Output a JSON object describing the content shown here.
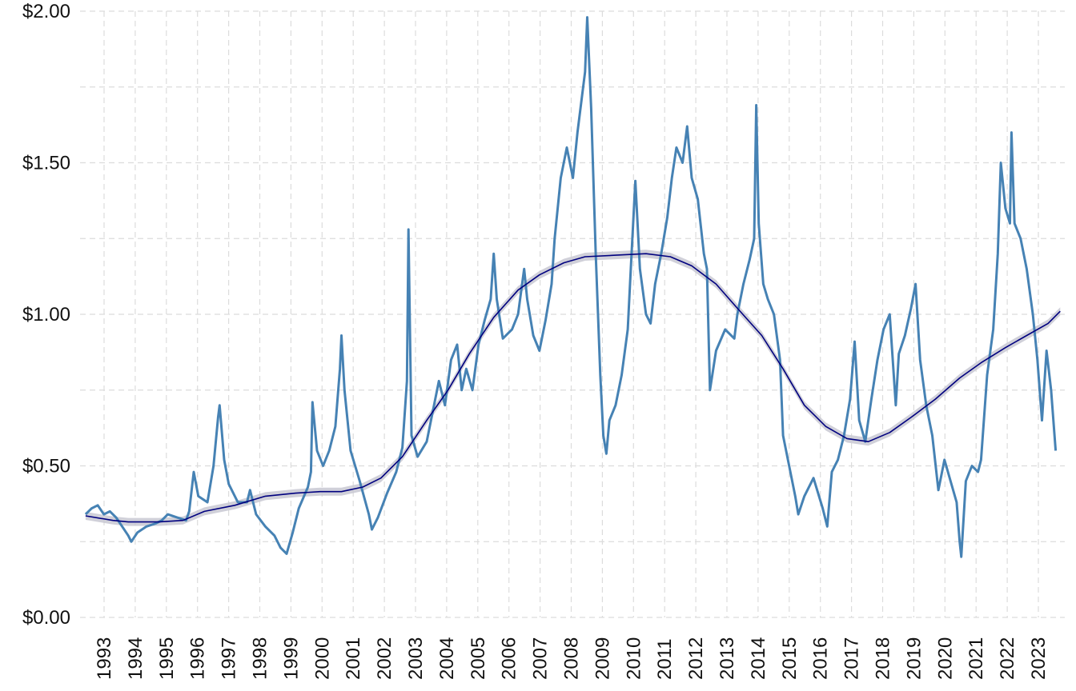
{
  "chart_data": {
    "type": "line",
    "title": "",
    "xlabel": "",
    "ylabel": "",
    "y_tick_labels": [
      "$0.00",
      "$0.50",
      "$1.00",
      "$1.50",
      "$2.00"
    ],
    "y_ticks": [
      0,
      0.5,
      1.0,
      1.5,
      2.0
    ],
    "ylim": [
      0,
      2.0
    ],
    "xlim": [
      1992.55,
      2023.6
    ],
    "x_tick_labels": [
      "1993",
      "1994",
      "1995",
      "1996",
      "1997",
      "1998",
      "1999",
      "2000",
      "2001",
      "2002",
      "2003",
      "2004",
      "2005",
      "2006",
      "2007",
      "2008",
      "2009",
      "2010",
      "2011",
      "2012",
      "2013",
      "2014",
      "2015",
      "2016",
      "2017",
      "2018",
      "2019",
      "2020",
      "2021",
      "2022",
      "2023"
    ],
    "grid": true,
    "legend": "none",
    "series": [
      {
        "role": "price",
        "color": "#4682b4",
        "points": [
          [
            1992.6,
            0.34
          ],
          [
            1992.8,
            0.36
          ],
          [
            1993.0,
            0.37
          ],
          [
            1993.2,
            0.34
          ],
          [
            1993.4,
            0.35
          ],
          [
            1993.6,
            0.33
          ],
          [
            1993.8,
            0.3
          ],
          [
            1994.0,
            0.27
          ],
          [
            1994.1,
            0.25
          ],
          [
            1994.3,
            0.28
          ],
          [
            1994.6,
            0.3
          ],
          [
            1994.9,
            0.31
          ],
          [
            1995.1,
            0.32
          ],
          [
            1995.3,
            0.34
          ],
          [
            1995.6,
            0.33
          ],
          [
            1995.9,
            0.32
          ],
          [
            1996.0,
            0.35
          ],
          [
            1996.15,
            0.48
          ],
          [
            1996.3,
            0.4
          ],
          [
            1996.6,
            0.38
          ],
          [
            1996.8,
            0.5
          ],
          [
            1996.95,
            0.66
          ],
          [
            1997.0,
            0.7
          ],
          [
            1997.15,
            0.52
          ],
          [
            1997.3,
            0.44
          ],
          [
            1997.6,
            0.38
          ],
          [
            1997.9,
            0.38
          ],
          [
            1998.0,
            0.42
          ],
          [
            1998.2,
            0.34
          ],
          [
            1998.5,
            0.3
          ],
          [
            1998.8,
            0.27
          ],
          [
            1999.0,
            0.23
          ],
          [
            1999.2,
            0.21
          ],
          [
            1999.4,
            0.28
          ],
          [
            1999.6,
            0.36
          ],
          [
            1999.9,
            0.43
          ],
          [
            2000.0,
            0.48
          ],
          [
            2000.05,
            0.71
          ],
          [
            2000.2,
            0.55
          ],
          [
            2000.4,
            0.5
          ],
          [
            2000.6,
            0.55
          ],
          [
            2000.8,
            0.63
          ],
          [
            2000.95,
            0.82
          ],
          [
            2001.0,
            0.93
          ],
          [
            2001.1,
            0.75
          ],
          [
            2001.3,
            0.55
          ],
          [
            2001.6,
            0.45
          ],
          [
            2001.9,
            0.34
          ],
          [
            2002.0,
            0.29
          ],
          [
            2002.2,
            0.33
          ],
          [
            2002.5,
            0.41
          ],
          [
            2002.8,
            0.48
          ],
          [
            2003.0,
            0.56
          ],
          [
            2003.15,
            0.78
          ],
          [
            2003.2,
            1.28
          ],
          [
            2003.3,
            0.6
          ],
          [
            2003.5,
            0.53
          ],
          [
            2003.8,
            0.58
          ],
          [
            2004.0,
            0.68
          ],
          [
            2004.2,
            0.78
          ],
          [
            2004.4,
            0.7
          ],
          [
            2004.6,
            0.85
          ],
          [
            2004.8,
            0.9
          ],
          [
            2004.95,
            0.75
          ],
          [
            2005.1,
            0.82
          ],
          [
            2005.3,
            0.75
          ],
          [
            2005.5,
            0.9
          ],
          [
            2005.7,
            0.98
          ],
          [
            2005.9,
            1.05
          ],
          [
            2006.0,
            1.2
          ],
          [
            2006.1,
            1.05
          ],
          [
            2006.3,
            0.92
          ],
          [
            2006.6,
            0.95
          ],
          [
            2006.8,
            1.0
          ],
          [
            2007.0,
            1.15
          ],
          [
            2007.1,
            1.05
          ],
          [
            2007.3,
            0.93
          ],
          [
            2007.5,
            0.88
          ],
          [
            2007.7,
            0.98
          ],
          [
            2007.9,
            1.1
          ],
          [
            2008.0,
            1.25
          ],
          [
            2008.2,
            1.45
          ],
          [
            2008.4,
            1.55
          ],
          [
            2008.6,
            1.45
          ],
          [
            2008.75,
            1.6
          ],
          [
            2008.9,
            1.72
          ],
          [
            2009.0,
            1.8
          ],
          [
            2009.07,
            1.98
          ],
          [
            2009.2,
            1.68
          ],
          [
            2009.35,
            1.2
          ],
          [
            2009.5,
            0.8
          ],
          [
            2009.6,
            0.6
          ],
          [
            2009.7,
            0.54
          ],
          [
            2009.8,
            0.65
          ],
          [
            2010.0,
            0.7
          ],
          [
            2010.2,
            0.8
          ],
          [
            2010.4,
            0.95
          ],
          [
            2010.5,
            1.15
          ],
          [
            2010.65,
            1.44
          ],
          [
            2010.8,
            1.15
          ],
          [
            2011.0,
            1.0
          ],
          [
            2011.15,
            0.97
          ],
          [
            2011.3,
            1.1
          ],
          [
            2011.5,
            1.2
          ],
          [
            2011.7,
            1.32
          ],
          [
            2011.85,
            1.45
          ],
          [
            2012.0,
            1.55
          ],
          [
            2012.2,
            1.5
          ],
          [
            2012.35,
            1.62
          ],
          [
            2012.5,
            1.45
          ],
          [
            2012.7,
            1.38
          ],
          [
            2012.9,
            1.2
          ],
          [
            2013.0,
            1.15
          ],
          [
            2013.1,
            0.75
          ],
          [
            2013.3,
            0.88
          ],
          [
            2013.6,
            0.95
          ],
          [
            2013.9,
            0.92
          ],
          [
            2014.0,
            1.0
          ],
          [
            2014.2,
            1.1
          ],
          [
            2014.4,
            1.18
          ],
          [
            2014.55,
            1.25
          ],
          [
            2014.62,
            1.69
          ],
          [
            2014.7,
            1.3
          ],
          [
            2014.85,
            1.1
          ],
          [
            2015.0,
            1.05
          ],
          [
            2015.2,
            1.0
          ],
          [
            2015.4,
            0.85
          ],
          [
            2015.5,
            0.6
          ],
          [
            2015.7,
            0.5
          ],
          [
            2015.9,
            0.4
          ],
          [
            2016.0,
            0.34
          ],
          [
            2016.2,
            0.4
          ],
          [
            2016.5,
            0.46
          ],
          [
            2016.8,
            0.36
          ],
          [
            2016.95,
            0.3
          ],
          [
            2017.1,
            0.48
          ],
          [
            2017.3,
            0.52
          ],
          [
            2017.5,
            0.6
          ],
          [
            2017.7,
            0.72
          ],
          [
            2017.85,
            0.91
          ],
          [
            2018.0,
            0.65
          ],
          [
            2018.2,
            0.58
          ],
          [
            2018.4,
            0.72
          ],
          [
            2018.6,
            0.85
          ],
          [
            2018.8,
            0.95
          ],
          [
            2019.0,
            1.0
          ],
          [
            2019.2,
            0.7
          ],
          [
            2019.3,
            0.87
          ],
          [
            2019.5,
            0.93
          ],
          [
            2019.7,
            1.02
          ],
          [
            2019.85,
            1.1
          ],
          [
            2020.0,
            0.85
          ],
          [
            2020.2,
            0.7
          ],
          [
            2020.4,
            0.6
          ],
          [
            2020.6,
            0.42
          ],
          [
            2020.8,
            0.52
          ],
          [
            2021.0,
            0.45
          ],
          [
            2021.2,
            0.38
          ],
          [
            2021.3,
            0.25
          ],
          [
            2021.35,
            0.2
          ],
          [
            2021.5,
            0.45
          ],
          [
            2021.7,
            0.5
          ],
          [
            2021.9,
            0.48
          ],
          [
            2022.0,
            0.52
          ],
          [
            2022.2,
            0.8
          ],
          [
            2022.4,
            0.95
          ],
          [
            2022.55,
            1.2
          ],
          [
            2022.65,
            1.5
          ],
          [
            2022.8,
            1.35
          ],
          [
            2022.95,
            1.3
          ],
          [
            2023.0,
            1.6
          ],
          [
            2023.1,
            1.3
          ],
          [
            2023.3,
            1.25
          ],
          [
            2023.5,
            1.15
          ],
          [
            2023.7,
            1.0
          ],
          [
            2023.85,
            0.85
          ],
          [
            2024.0,
            0.65
          ],
          [
            2024.15,
            0.88
          ],
          [
            2024.3,
            0.75
          ],
          [
            2024.45,
            0.55
          ]
        ]
      },
      {
        "role": "trend",
        "color": "#00007f",
        "band_color": "#c8c8d2",
        "points": [
          [
            1992.6,
            0.335
          ],
          [
            1993.5,
            0.32
          ],
          [
            1994.0,
            0.315
          ],
          [
            1995.0,
            0.315
          ],
          [
            1995.8,
            0.32
          ],
          [
            1996.5,
            0.35
          ],
          [
            1997.5,
            0.37
          ],
          [
            1998.5,
            0.4
          ],
          [
            1999.5,
            0.41
          ],
          [
            2000.3,
            0.415
          ],
          [
            2001.0,
            0.415
          ],
          [
            2001.7,
            0.43
          ],
          [
            2002.3,
            0.46
          ],
          [
            2003.0,
            0.53
          ],
          [
            2003.8,
            0.65
          ],
          [
            2004.5,
            0.75
          ],
          [
            2005.2,
            0.87
          ],
          [
            2006.0,
            0.99
          ],
          [
            2006.8,
            1.08
          ],
          [
            2007.5,
            1.13
          ],
          [
            2008.3,
            1.17
          ],
          [
            2009.0,
            1.19
          ],
          [
            2010.0,
            1.195
          ],
          [
            2011.0,
            1.2
          ],
          [
            2011.8,
            1.19
          ],
          [
            2012.5,
            1.16
          ],
          [
            2013.3,
            1.1
          ],
          [
            2014.0,
            1.02
          ],
          [
            2014.8,
            0.93
          ],
          [
            2015.5,
            0.82
          ],
          [
            2016.2,
            0.7
          ],
          [
            2016.9,
            0.63
          ],
          [
            2017.6,
            0.59
          ],
          [
            2018.3,
            0.58
          ],
          [
            2019.0,
            0.61
          ],
          [
            2019.7,
            0.66
          ],
          [
            2020.5,
            0.72
          ],
          [
            2021.3,
            0.79
          ],
          [
            2022.0,
            0.84
          ],
          [
            2022.8,
            0.89
          ],
          [
            2023.5,
            0.93
          ],
          [
            2024.2,
            0.97
          ],
          [
            2024.6,
            1.01
          ]
        ]
      }
    ]
  }
}
